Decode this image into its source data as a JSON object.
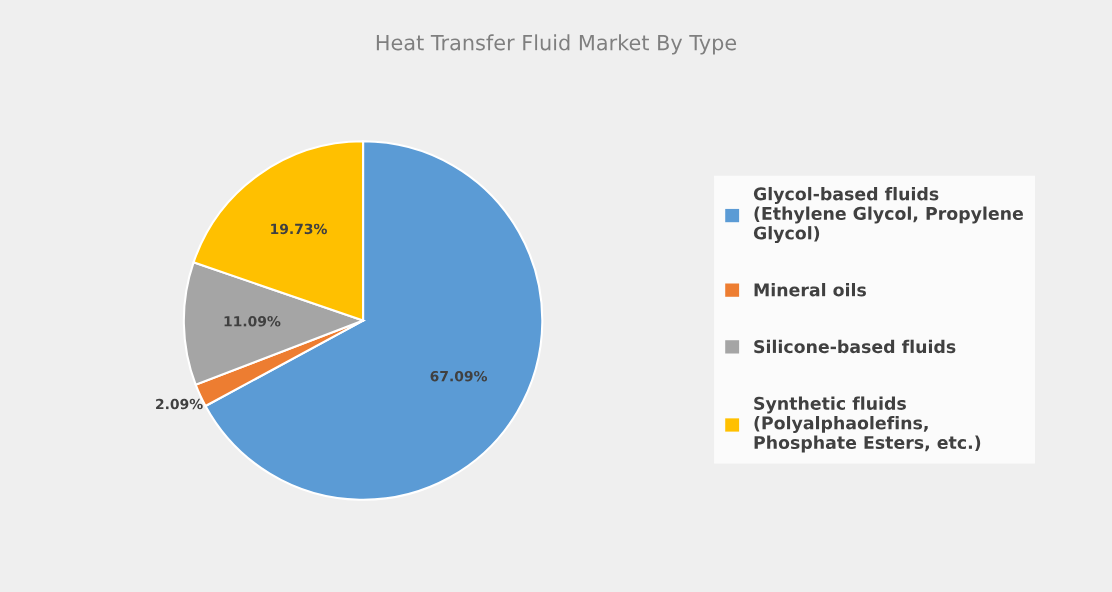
{
  "chart_data": {
    "type": "pie",
    "title": "Heat Transfer Fluid Market By Type",
    "categories": [
      "Glycol-based fluids (Ethylene Glycol, Propylene Glycol)",
      "Mineral oils",
      "Silicone-based fluids",
      "Synthetic fluids (Polyalphaolefins, Phosphate Esters, etc.)"
    ],
    "values": [
      67.09,
      2.09,
      11.09,
      19.73
    ],
    "colors": [
      "#5b9bd5",
      "#ed7d31",
      "#a5a5a5",
      "#ffc000"
    ],
    "value_labels": [
      "67.09%",
      "2.09%",
      "11.09%",
      "19.73%"
    ],
    "legend": "right"
  }
}
